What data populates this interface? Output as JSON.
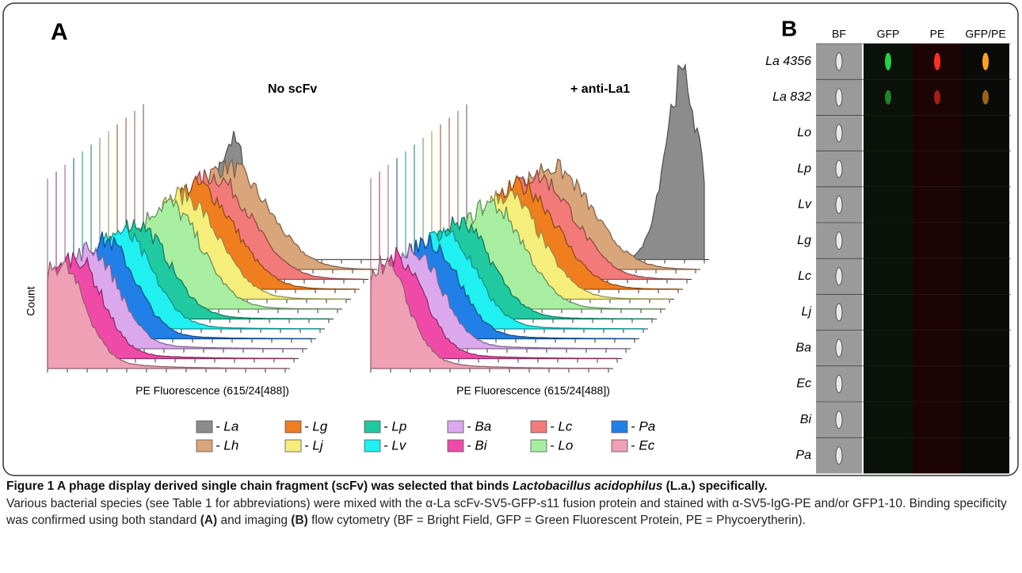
{
  "panel_a": {
    "label": "A",
    "plots": [
      {
        "title": "No scFv",
        "x_label": "PE Fluorescence (615/24[488])"
      },
      {
        "title": "+ anti-La1",
        "x_label": "PE Fluorescence (615/24[488])"
      }
    ],
    "y_label": "Count",
    "legend": [
      {
        "label": "- La",
        "color": "#8c8c8c"
      },
      {
        "label": "- Lh",
        "color": "#d9a57a"
      },
      {
        "label": "- Lg",
        "color": "#f07d1e"
      },
      {
        "label": "- Lj",
        "color": "#f5ee7a"
      },
      {
        "label": "- Lp",
        "color": "#20c9a0"
      },
      {
        "label": "- Lv",
        "color": "#20f0f0"
      },
      {
        "label": "- Ba",
        "color": "#dba8ee"
      },
      {
        "label": "- Bi",
        "color": "#f04aa8"
      },
      {
        "label": "- Lc",
        "color": "#f27a78"
      },
      {
        "label": "- Lo",
        "color": "#a8eea0"
      },
      {
        "label": "- Pa",
        "color": "#2080e8"
      },
      {
        "label": "- Ec",
        "color": "#f0a0b4"
      }
    ]
  },
  "panel_b": {
    "label": "B",
    "columns": [
      "BF",
      "GFP",
      "PE",
      "GFP/PE"
    ],
    "rows": [
      "La 4356",
      "La 832",
      "Lo",
      "Lp",
      "Lv",
      "Lg",
      "Lc",
      "Lj",
      "Ba",
      "Ec",
      "Bi",
      "Pa"
    ]
  },
  "caption": {
    "title": [
      "Figure 1 A phage display derived single chain fragment (scFv) was selected that binds ",
      "Lactobacillus acidophilus",
      " (L.a.) specifically."
    ],
    "body": [
      "Various bacterial species (see Table 1 for abbreviations) were mixed with the α-La scFv-SV5-GFP-s11 fusion protein and stained with α-SV5-IgG-PE and/or GFP1-10. Binding specificity was confirmed using both standard ",
      "(A)",
      " and imaging ",
      "(B)",
      " flow cytometry (BF = Bright Field, GFP = Green Fluorescent Protein, PE = Phycoerytherin)."
    ]
  }
}
